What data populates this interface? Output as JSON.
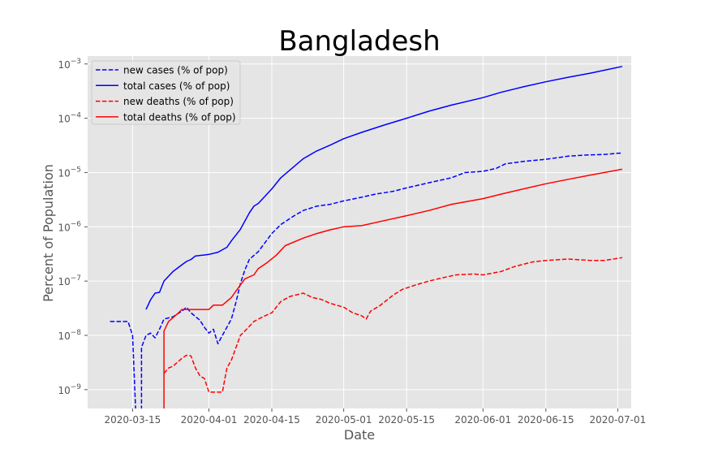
{
  "chart_data": {
    "type": "line",
    "title": "Bangladesh",
    "xlabel": "Date",
    "ylabel": "Percent of Population",
    "y_scale": "log",
    "ylim": [
      4.5e-10,
      0.0014
    ],
    "xlim": [
      "2020-03-05",
      "2020-07-04"
    ],
    "grid": true,
    "legend_position": "upper-left",
    "x_ticks": [
      "2020-03-15",
      "2020-04-01",
      "2020-04-15",
      "2020-05-01",
      "2020-05-15",
      "2020-06-01",
      "2020-06-15",
      "2020-07-01"
    ],
    "y_ticks": [
      {
        "value": 1e-09,
        "base": "10",
        "exp": "−9"
      },
      {
        "value": 1e-08,
        "base": "10",
        "exp": "−8"
      },
      {
        "value": 1e-07,
        "base": "10",
        "exp": "−7"
      },
      {
        "value": 1e-06,
        "base": "10",
        "exp": "−6"
      },
      {
        "value": 1e-05,
        "base": "10",
        "exp": "−5"
      },
      {
        "value": 0.0001,
        "base": "10",
        "exp": "−4"
      },
      {
        "value": 0.001,
        "base": "10",
        "exp": "−3"
      }
    ],
    "series": [
      {
        "name": "new cases (% of pop)",
        "color": "#0000ff",
        "dash": "dashed",
        "points": [
          [
            "2020-03-10",
            1.8e-08
          ],
          [
            "2020-03-14",
            1.8e-08
          ],
          [
            "2020-03-15",
            1e-08
          ],
          [
            "2020-03-16",
            1e-10
          ],
          [
            "2020-03-17",
            1e-10
          ],
          [
            "2020-03-17",
            6e-09
          ],
          [
            "2020-03-18",
            1e-08
          ],
          [
            "2020-03-19",
            1.1e-08
          ],
          [
            "2020-03-20",
            9e-09
          ],
          [
            "2020-03-21",
            1.3e-08
          ],
          [
            "2020-03-22",
            2e-08
          ],
          [
            "2020-03-24",
            2.2e-08
          ],
          [
            "2020-03-26",
            2.8e-08
          ],
          [
            "2020-03-27",
            3.3e-08
          ],
          [
            "2020-03-28",
            2.6e-08
          ],
          [
            "2020-03-30",
            1.9e-08
          ],
          [
            "2020-03-31",
            1.4e-08
          ],
          [
            "2020-04-01",
            1.1e-08
          ],
          [
            "2020-04-02",
            1.3e-08
          ],
          [
            "2020-04-03",
            7e-09
          ],
          [
            "2020-04-04",
            1e-08
          ],
          [
            "2020-04-06",
            2e-08
          ],
          [
            "2020-04-07",
            4e-08
          ],
          [
            "2020-04-08",
            9e-08
          ],
          [
            "2020-04-09",
            1.6e-07
          ],
          [
            "2020-04-10",
            2.5e-07
          ],
          [
            "2020-04-12",
            3.5e-07
          ],
          [
            "2020-04-15",
            7.5e-07
          ],
          [
            "2020-04-17",
            1.1e-06
          ],
          [
            "2020-04-20",
            1.6e-06
          ],
          [
            "2020-04-22",
            2e-06
          ],
          [
            "2020-04-25",
            2.4e-06
          ],
          [
            "2020-04-28",
            2.6e-06
          ],
          [
            "2020-05-01",
            3e-06
          ],
          [
            "2020-05-05",
            3.5e-06
          ],
          [
            "2020-05-08",
            4e-06
          ],
          [
            "2020-05-12",
            4.5e-06
          ],
          [
            "2020-05-15",
            5.2e-06
          ],
          [
            "2020-05-20",
            6.5e-06
          ],
          [
            "2020-05-25",
            8e-06
          ],
          [
            "2020-05-28",
            1e-05
          ],
          [
            "2020-06-01",
            1.05e-05
          ],
          [
            "2020-06-04",
            1.2e-05
          ],
          [
            "2020-06-06",
            1.45e-05
          ],
          [
            "2020-06-10",
            1.6e-05
          ],
          [
            "2020-06-15",
            1.75e-05
          ],
          [
            "2020-06-20",
            2e-05
          ],
          [
            "2020-06-24",
            2.1e-05
          ],
          [
            "2020-06-28",
            2.15e-05
          ],
          [
            "2020-07-02",
            2.3e-05
          ]
        ]
      },
      {
        "name": "total cases (% of pop)",
        "color": "#0000ff",
        "dash": "solid",
        "points": [
          [
            "2020-03-18",
            3e-08
          ],
          [
            "2020-03-19",
            4.5e-08
          ],
          [
            "2020-03-20",
            6e-08
          ],
          [
            "2020-03-21",
            6.2e-08
          ],
          [
            "2020-03-22",
            1e-07
          ],
          [
            "2020-03-24",
            1.5e-07
          ],
          [
            "2020-03-26",
            2e-07
          ],
          [
            "2020-03-27",
            2.3e-07
          ],
          [
            "2020-03-28",
            2.5e-07
          ],
          [
            "2020-03-29",
            2.9e-07
          ],
          [
            "2020-04-01",
            3.1e-07
          ],
          [
            "2020-04-03",
            3.4e-07
          ],
          [
            "2020-04-05",
            4.2e-07
          ],
          [
            "2020-04-06",
            5.5e-07
          ],
          [
            "2020-04-08",
            9e-07
          ],
          [
            "2020-04-10",
            1.8e-06
          ],
          [
            "2020-04-11",
            2.4e-06
          ],
          [
            "2020-04-12",
            2.7e-06
          ],
          [
            "2020-04-15",
            5e-06
          ],
          [
            "2020-04-17",
            8e-06
          ],
          [
            "2020-04-20",
            1.3e-05
          ],
          [
            "2020-04-22",
            1.8e-05
          ],
          [
            "2020-04-25",
            2.5e-05
          ],
          [
            "2020-04-28",
            3.2e-05
          ],
          [
            "2020-05-01",
            4.2e-05
          ],
          [
            "2020-05-05",
            5.5e-05
          ],
          [
            "2020-05-10",
            7.5e-05
          ],
          [
            "2020-05-15",
            0.0001
          ],
          [
            "2020-05-20",
            0.000135
          ],
          [
            "2020-05-25",
            0.000175
          ],
          [
            "2020-06-01",
            0.00024
          ],
          [
            "2020-06-05",
            0.0003
          ],
          [
            "2020-06-10",
            0.00038
          ],
          [
            "2020-06-15",
            0.00047
          ],
          [
            "2020-06-20",
            0.00057
          ],
          [
            "2020-06-25",
            0.00068
          ],
          [
            "2020-07-02",
            0.0009
          ]
        ]
      },
      {
        "name": "new deaths (% of pop)",
        "color": "#ff0000",
        "dash": "dashed",
        "points": [
          [
            "2020-03-22",
            2e-09
          ],
          [
            "2020-03-23",
            2.5e-09
          ],
          [
            "2020-03-24",
            2.7e-09
          ],
          [
            "2020-03-26",
            3.8e-09
          ],
          [
            "2020-03-27",
            4.3e-09
          ],
          [
            "2020-03-28",
            4.2e-09
          ],
          [
            "2020-03-29",
            2.5e-09
          ],
          [
            "2020-03-30",
            1.8e-09
          ],
          [
            "2020-03-31",
            1.6e-09
          ],
          [
            "2020-04-01",
            9e-10
          ],
          [
            "2020-04-03",
            9e-10
          ],
          [
            "2020-04-04",
            9e-10
          ],
          [
            "2020-04-05",
            2.5e-09
          ],
          [
            "2020-04-06",
            3.5e-09
          ],
          [
            "2020-04-08",
            1e-08
          ],
          [
            "2020-04-09",
            1.2e-08
          ],
          [
            "2020-04-11",
            1.8e-08
          ],
          [
            "2020-04-13",
            2.2e-08
          ],
          [
            "2020-04-15",
            2.6e-08
          ],
          [
            "2020-04-17",
            4.2e-08
          ],
          [
            "2020-04-19",
            5.2e-08
          ],
          [
            "2020-04-22",
            6e-08
          ],
          [
            "2020-04-24",
            5e-08
          ],
          [
            "2020-04-26",
            4.6e-08
          ],
          [
            "2020-04-28",
            3.9e-08
          ],
          [
            "2020-05-01",
            3.3e-08
          ],
          [
            "2020-05-03",
            2.6e-08
          ],
          [
            "2020-05-05",
            2.3e-08
          ],
          [
            "2020-05-06",
            2e-08
          ],
          [
            "2020-05-07",
            2.8e-08
          ],
          [
            "2020-05-09",
            3.5e-08
          ],
          [
            "2020-05-12",
            5.5e-08
          ],
          [
            "2020-05-14",
            7e-08
          ],
          [
            "2020-05-17",
            8.5e-08
          ],
          [
            "2020-05-20",
            1e-07
          ],
          [
            "2020-05-23",
            1.15e-07
          ],
          [
            "2020-05-26",
            1.3e-07
          ],
          [
            "2020-05-30",
            1.35e-07
          ],
          [
            "2020-06-01",
            1.3e-07
          ],
          [
            "2020-06-05",
            1.5e-07
          ],
          [
            "2020-06-08",
            1.85e-07
          ],
          [
            "2020-06-12",
            2.25e-07
          ],
          [
            "2020-06-15",
            2.4e-07
          ],
          [
            "2020-06-20",
            2.55e-07
          ],
          [
            "2020-06-25",
            2.4e-07
          ],
          [
            "2020-06-28",
            2.4e-07
          ],
          [
            "2020-07-02",
            2.7e-07
          ]
        ]
      },
      {
        "name": "total deaths (% of pop)",
        "color": "#ff0000",
        "dash": "solid",
        "points": [
          [
            "2020-03-22",
            1e-10
          ],
          [
            "2020-03-22",
            1.2e-08
          ],
          [
            "2020-03-23",
            1.8e-08
          ],
          [
            "2020-03-25",
            2.5e-08
          ],
          [
            "2020-03-26",
            3e-08
          ],
          [
            "2020-04-01",
            3e-08
          ],
          [
            "2020-04-02",
            3.6e-08
          ],
          [
            "2020-04-04",
            3.6e-08
          ],
          [
            "2020-04-06",
            5e-08
          ],
          [
            "2020-04-07",
            6.5e-08
          ],
          [
            "2020-04-09",
            1.1e-07
          ],
          [
            "2020-04-11",
            1.3e-07
          ],
          [
            "2020-04-12",
            1.7e-07
          ],
          [
            "2020-04-14",
            2.2e-07
          ],
          [
            "2020-04-16",
            3e-07
          ],
          [
            "2020-04-18",
            4.5e-07
          ],
          [
            "2020-04-22",
            6.2e-07
          ],
          [
            "2020-04-25",
            7.5e-07
          ],
          [
            "2020-04-28",
            8.8e-07
          ],
          [
            "2020-05-01",
            1e-06
          ],
          [
            "2020-05-05",
            1.05e-06
          ],
          [
            "2020-05-10",
            1.3e-06
          ],
          [
            "2020-05-15",
            1.6e-06
          ],
          [
            "2020-05-20",
            2e-06
          ],
          [
            "2020-05-25",
            2.6e-06
          ],
          [
            "2020-06-01",
            3.3e-06
          ],
          [
            "2020-06-05",
            4e-06
          ],
          [
            "2020-06-10",
            5e-06
          ],
          [
            "2020-06-15",
            6.2e-06
          ],
          [
            "2020-06-20",
            7.5e-06
          ],
          [
            "2020-06-25",
            9e-06
          ],
          [
            "2020-07-02",
            1.15e-05
          ]
        ]
      }
    ]
  }
}
